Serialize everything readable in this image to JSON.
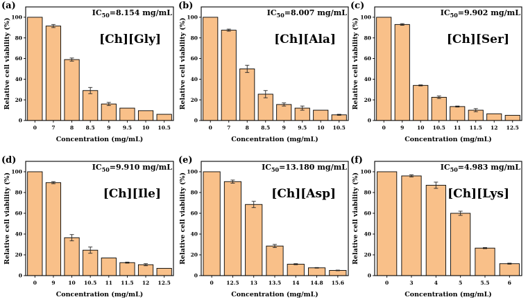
{
  "colors": {
    "bar": "#f9c089",
    "stroke": "#000000"
  },
  "chart_data": [
    {
      "type": "bar",
      "panel": "(a)",
      "ic50_value": "=8.154 mg/mL",
      "compound": "[Ch][Gly]",
      "categories": [
        "0",
        "7",
        "8",
        "8.5",
        "9",
        "9.5",
        "10",
        "10.5"
      ],
      "values": [
        100,
        91.5,
        59,
        29,
        16,
        12,
        9.5,
        6
      ],
      "errors": [
        0,
        1.5,
        1.5,
        3,
        1.5,
        0,
        0,
        0
      ],
      "xlabel": "Concentration (mg/mL)",
      "ylabel": "Relative cell viability (%)",
      "ylim": [
        0,
        110
      ],
      "yticks": [
        0,
        20,
        40,
        60,
        80,
        100
      ]
    },
    {
      "type": "bar",
      "panel": "(b)",
      "ic50_value": "=8.007 mg/mL",
      "compound": "[Ch][Ala]",
      "categories": [
        "0",
        "7",
        "8",
        "8.5",
        "9",
        "9.5",
        "10",
        "10.5"
      ],
      "values": [
        100,
        87.5,
        50,
        25.5,
        15.5,
        12,
        10,
        5.5
      ],
      "errors": [
        0,
        1,
        3.5,
        3.5,
        1.5,
        2,
        0,
        0.5
      ],
      "xlabel": "Concentration (mg/mL)",
      "ylabel": "Relative cell viability (%)",
      "ylim": [
        0,
        110
      ],
      "yticks": [
        0,
        20,
        40,
        60,
        80,
        100
      ]
    },
    {
      "type": "bar",
      "panel": "(c)",
      "ic50_value": "=9.902 mg/mL",
      "compound": "[Ch][Ser]",
      "categories": [
        "0",
        "9",
        "10",
        "10.5",
        "11",
        "11.5",
        "12",
        "12.5"
      ],
      "values": [
        100,
        93,
        34,
        22.5,
        13.5,
        10,
        6.5,
        5
      ],
      "errors": [
        0,
        0.8,
        0.5,
        1.2,
        0.5,
        1.5,
        0,
        0
      ],
      "xlabel": "Concentration (mg/mL)",
      "ylabel": "Relative cell viability (%)",
      "ylim": [
        0,
        110
      ],
      "yticks": [
        0,
        20,
        40,
        60,
        80,
        100
      ]
    },
    {
      "type": "bar",
      "panel": "(d)",
      "ic50_value": "=9.910 mg/mL",
      "compound": "[Ch][Ile]",
      "categories": [
        "0",
        "9",
        "10",
        "10.5",
        "11",
        "11.5",
        "12",
        "12.5"
      ],
      "values": [
        100,
        89.5,
        36.5,
        24.5,
        17,
        12.5,
        10.5,
        7
      ],
      "errors": [
        0,
        1,
        3,
        3,
        0,
        0.5,
        1,
        0
      ],
      "xlabel": "Concentration (mg/mL)",
      "ylabel": "Relative cell viability (%)",
      "ylim": [
        0,
        110
      ],
      "yticks": [
        0,
        20,
        40,
        60,
        80,
        100
      ]
    },
    {
      "type": "bar",
      "panel": "(e)",
      "ic50_value": "=13.180 mg/mL",
      "compound": "[Ch][Asp]",
      "categories": [
        "0",
        "12.5",
        "13",
        "13.5",
        "14",
        "14.8",
        "15.6"
      ],
      "values": [
        100,
        90.5,
        68.5,
        28.5,
        11,
        7.5,
        5
      ],
      "errors": [
        0,
        1.5,
        3,
        1.5,
        0.5,
        0.3,
        0.3
      ],
      "xlabel": "Concentration (mg/mL)",
      "ylabel": "Relative cell viability (%)",
      "ylim": [
        0,
        110
      ],
      "yticks": [
        0,
        20,
        40,
        60,
        80,
        100
      ]
    },
    {
      "type": "bar",
      "panel": "(f)",
      "ic50_value": "=4.983 mg/mL",
      "compound": "[Ch][Lys]",
      "categories": [
        "0",
        "3",
        "4",
        "5",
        "5.5",
        "6"
      ],
      "values": [
        100,
        96,
        87,
        60,
        26.5,
        11.5
      ],
      "errors": [
        0,
        1,
        3,
        2,
        0.5,
        0.5
      ],
      "xlabel": "Concentration (mg/mL)",
      "ylabel": "Relative cell viability (%)",
      "ylim": [
        0,
        110
      ],
      "yticks": [
        0,
        20,
        40,
        60,
        80,
        100
      ]
    }
  ]
}
